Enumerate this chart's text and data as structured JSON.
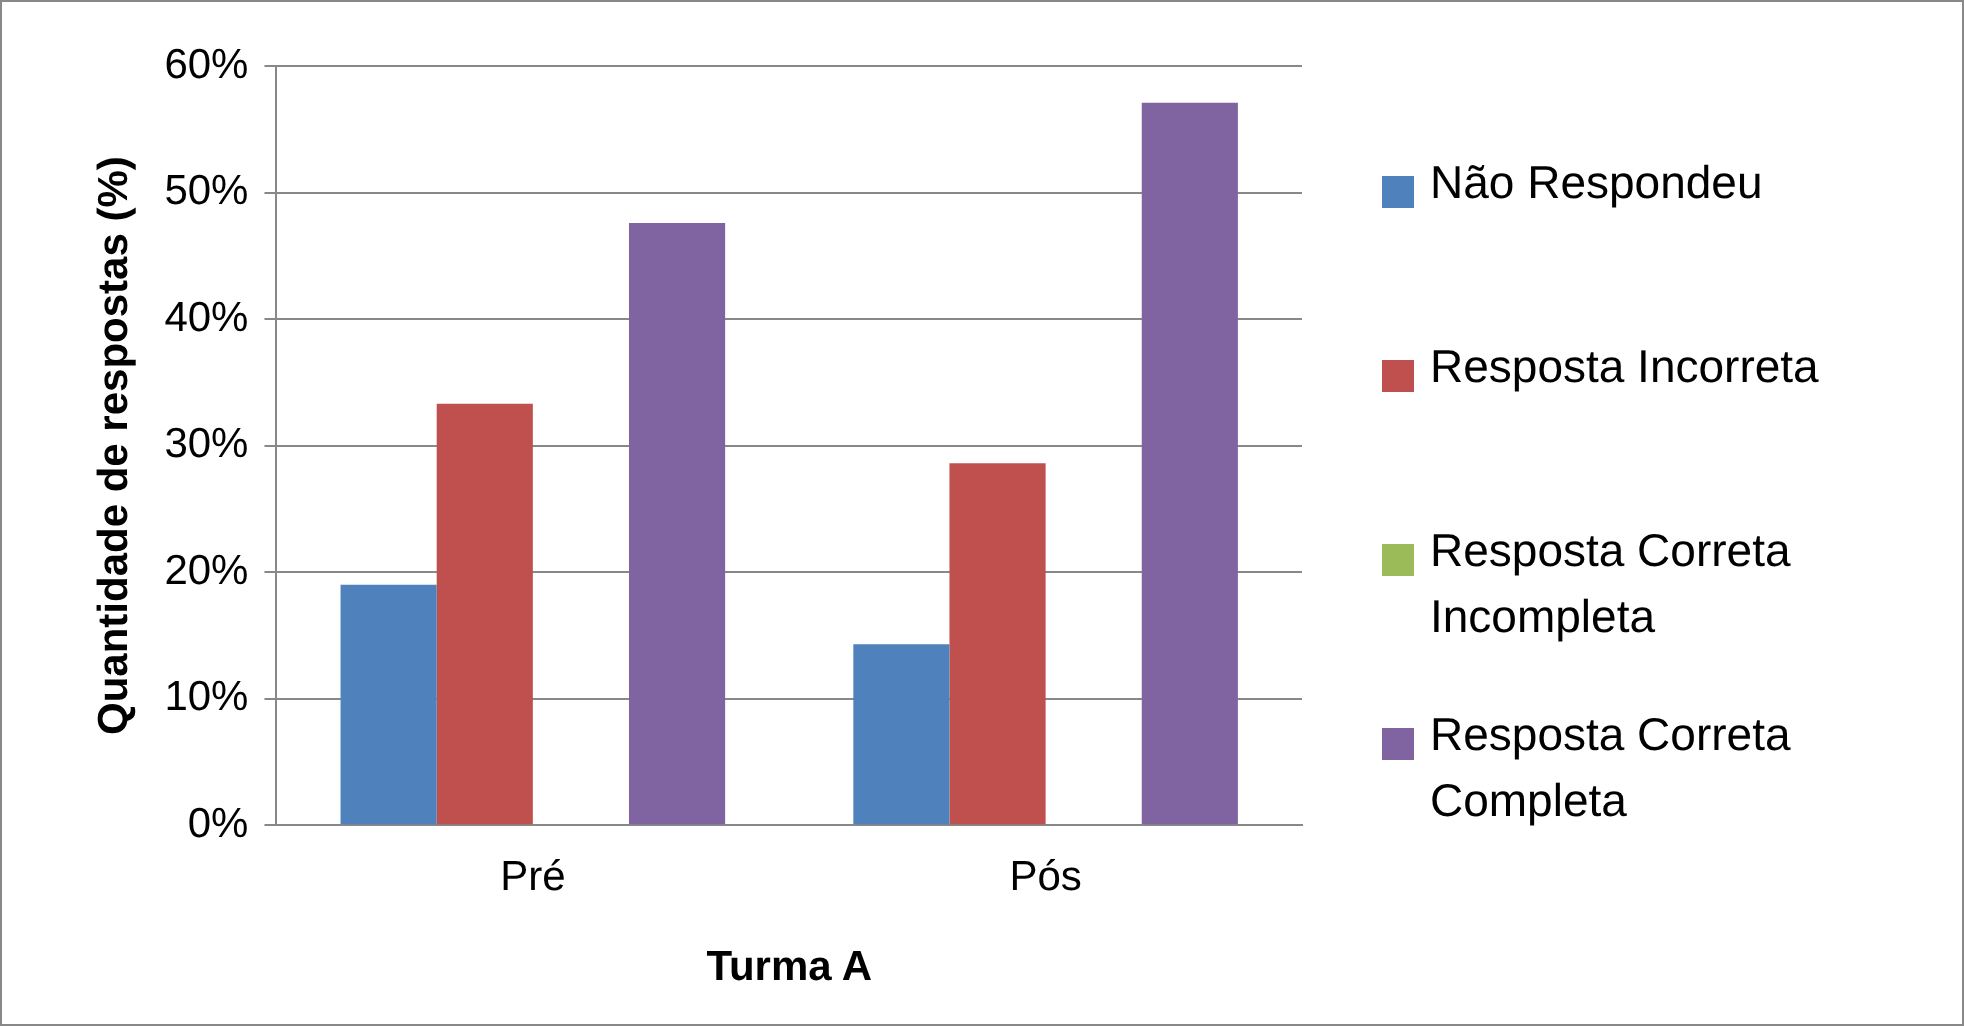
{
  "chart_data": {
    "type": "bar",
    "xlabel": "Turma A",
    "ylabel": "Quantidade de respostas (%)",
    "categories": [
      "Pré",
      "Pós"
    ],
    "series": [
      {
        "name": "Não Respondeu",
        "color": "#4f81bd",
        "values": [
          19.0,
          14.3
        ]
      },
      {
        "name": "Resposta Incorreta",
        "color": "#c0504d",
        "values": [
          33.3,
          28.6
        ]
      },
      {
        "name": "Resposta Correta Incompleta",
        "color": "#9bbb59",
        "values": [
          0,
          0
        ]
      },
      {
        "name": "Resposta Correta Completa",
        "color": "#8064a2",
        "values": [
          47.6,
          57.1
        ]
      }
    ],
    "ylim": [
      0,
      60
    ],
    "yticks": [
      {
        "value": 0,
        "label": "0%"
      },
      {
        "value": 10,
        "label": "10%"
      },
      {
        "value": 20,
        "label": "20%"
      },
      {
        "value": 30,
        "label": "30%"
      },
      {
        "value": 40,
        "label": "40%"
      },
      {
        "value": 50,
        "label": "50%"
      },
      {
        "value": 60,
        "label": "60%"
      }
    ],
    "grid": "y",
    "legend": "right"
  }
}
